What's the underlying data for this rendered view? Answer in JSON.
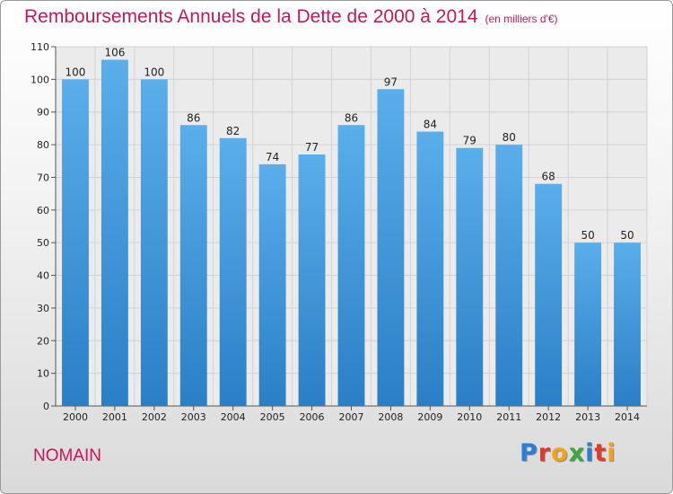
{
  "chart_data": {
    "type": "bar",
    "title": "Remboursements Annuels de la Dette de 2000 à 2014",
    "subtitle": "(en milliers d'€)",
    "categories": [
      "2000",
      "2001",
      "2002",
      "2003",
      "2004",
      "2005",
      "2006",
      "2007",
      "2008",
      "2009",
      "2010",
      "2011",
      "2012",
      "2013",
      "2014"
    ],
    "values": [
      100,
      106,
      100,
      86,
      82,
      74,
      77,
      86,
      97,
      84,
      79,
      80,
      68,
      50,
      50
    ],
    "xlabel": "",
    "ylabel": "",
    "ylim": [
      0,
      110
    ],
    "yticks": [
      0,
      10,
      20,
      30,
      40,
      50,
      60,
      70,
      80,
      90,
      100,
      110
    ],
    "grid": true,
    "bar_color": "#4a9ee0"
  },
  "footer": {
    "commune": "NOMAIN",
    "logo_letters": [
      {
        "ch": "P",
        "color": "#2a7fd4"
      },
      {
        "ch": "r",
        "color": "#e03a2e"
      },
      {
        "ch": "o",
        "color": "#f5a21b"
      },
      {
        "ch": "x",
        "color": "#3aa83a"
      },
      {
        "ch": "i",
        "color": "#2a7fd4"
      },
      {
        "ch": "t",
        "color": "#e03a2e"
      },
      {
        "ch": "i",
        "color": "#f5a21b"
      }
    ]
  }
}
